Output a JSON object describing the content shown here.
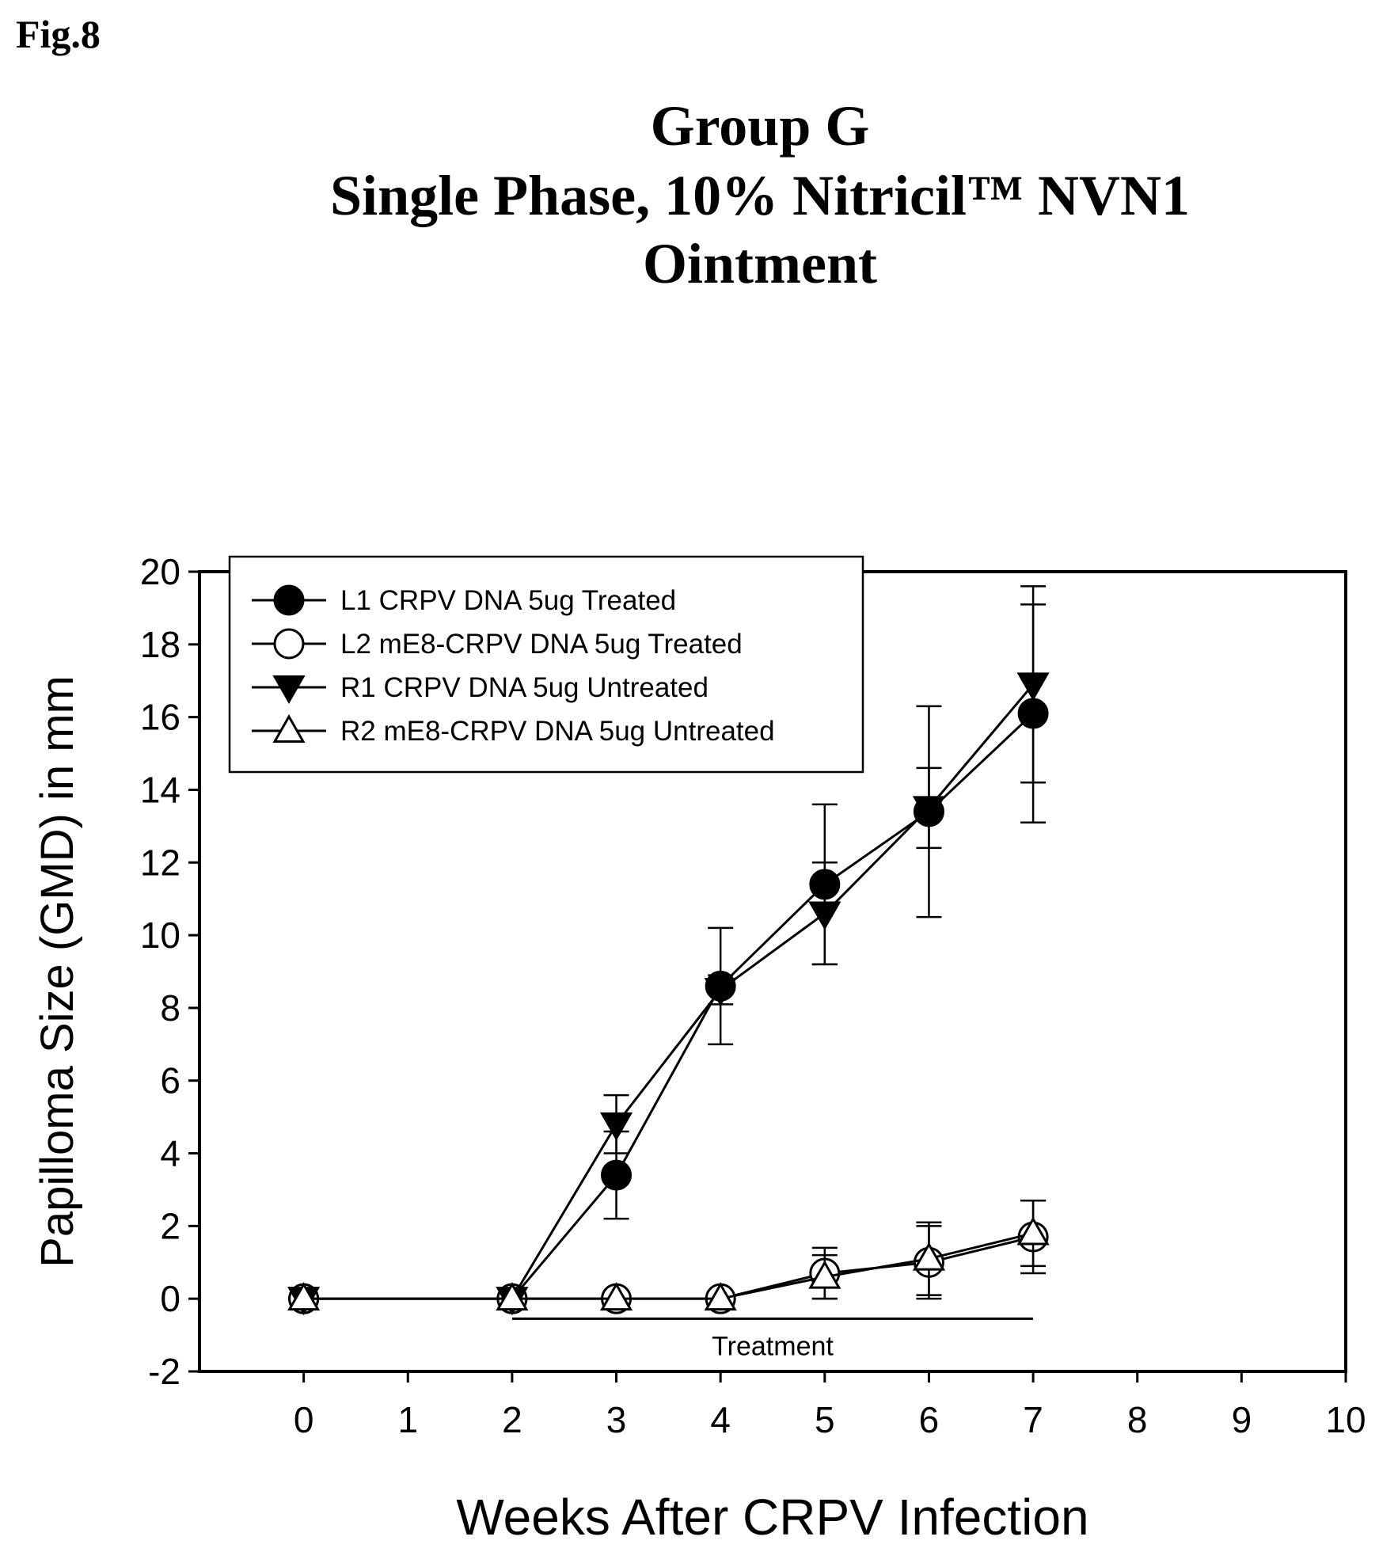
{
  "figure_label": "Fig.8",
  "title_lines": [
    "Group G",
    "Single Phase, 10% Nitricil™ NVN1",
    "Ointment"
  ],
  "chart_data": {
    "type": "line",
    "title": "Group G Single Phase, 10% Nitricil™ NVN1 Ointment",
    "xlabel": "Weeks After CRPV Infection",
    "ylabel": "Papilloma Size (GMD) in mm",
    "xlim": [
      -1,
      10
    ],
    "ylim": [
      -2,
      20
    ],
    "xticks": [
      0,
      1,
      2,
      3,
      4,
      5,
      6,
      7,
      8,
      9,
      10
    ],
    "yticks": [
      -2,
      0,
      2,
      4,
      6,
      8,
      10,
      12,
      14,
      16,
      18,
      20
    ],
    "grid": false,
    "legend_position": "top-left",
    "series": [
      {
        "name": "L1 CRPV DNA 5ug Treated",
        "marker": "circle-filled",
        "x": [
          0,
          2,
          3,
          4,
          5,
          6,
          7
        ],
        "y": [
          0,
          0,
          3.4,
          8.6,
          11.4,
          13.4,
          16.1
        ],
        "err": [
          0,
          0,
          1.2,
          1.6,
          2.2,
          2.9,
          3.0
        ]
      },
      {
        "name": "L2 mE8-CRPV DNA 5ug Treated",
        "marker": "circle-open",
        "x": [
          0,
          2,
          3,
          4,
          5,
          6,
          7
        ],
        "y": [
          0,
          0,
          0,
          0,
          0.7,
          1.0,
          1.7
        ],
        "err": [
          0,
          0,
          0,
          0,
          0.7,
          1.0,
          1.0
        ]
      },
      {
        "name": "R1 CRPV DNA 5ug Untreated",
        "marker": "triangle-down-filled",
        "x": [
          0,
          2,
          3,
          4,
          5,
          6,
          7
        ],
        "y": [
          0,
          0,
          4.8,
          8.5,
          10.6,
          13.5,
          16.9
        ],
        "err": [
          0,
          0,
          0.8,
          0.4,
          1.4,
          1.1,
          2.7
        ]
      },
      {
        "name": "R2 mE8-CRPV DNA 5ug Untreated",
        "marker": "triangle-up-open",
        "x": [
          0,
          2,
          3,
          4,
          5,
          6,
          7
        ],
        "y": [
          0,
          0,
          0,
          0,
          0.6,
          1.1,
          1.8
        ],
        "err": [
          0,
          0,
          0,
          0,
          0.6,
          1.0,
          0.9
        ]
      }
    ],
    "annotations": [
      {
        "text": "Treatment",
        "x_start": 2,
        "x_end": 7,
        "y": -0.55
      }
    ]
  }
}
